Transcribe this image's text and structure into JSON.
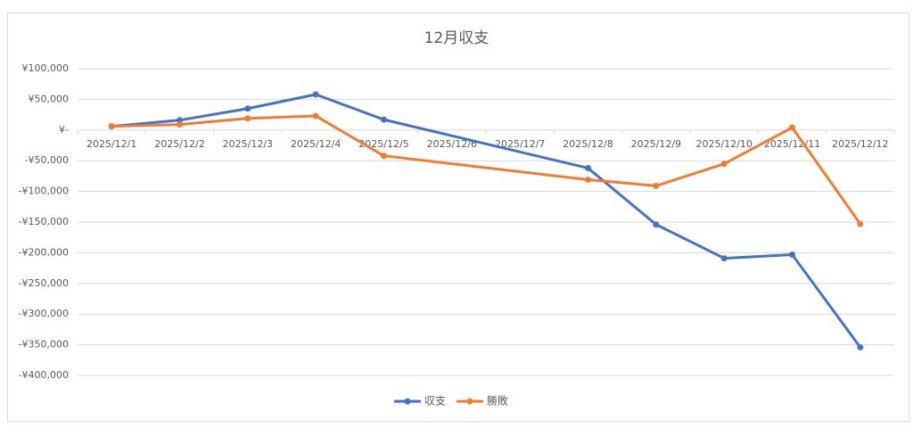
{
  "chart_data": {
    "type": "line",
    "title": "12月収支",
    "categories": [
      "2025/12/1",
      "2025/12/2",
      "2025/12/3",
      "2025/12/4",
      "2025/12/5",
      "2025/12/6",
      "2025/12/7",
      "2025/12/8",
      "2025/12/9",
      "2025/12/10",
      "2025/12/11",
      "2025/12/12"
    ],
    "series": [
      {
        "name": "収支",
        "color": "#4472c4",
        "values": [
          6000,
          16000,
          35000,
          58000,
          17000,
          null,
          null,
          -62000,
          -154000,
          -209000,
          -203000,
          -354000
        ]
      },
      {
        "name": "勝敗",
        "color": "#ed7d31",
        "values": [
          6000,
          9000,
          19000,
          23000,
          -42000,
          null,
          null,
          -81000,
          -91000,
          -55000,
          4000,
          -153000
        ]
      }
    ],
    "ylim": [
      -400000,
      100000
    ],
    "yticks": [
      {
        "value": 100000,
        "label": "¥100,000"
      },
      {
        "value": 50000,
        "label": "¥50,000"
      },
      {
        "value": 0,
        "label": "¥-"
      },
      {
        "value": -50000,
        "label": "-¥50,000"
      },
      {
        "value": -100000,
        "label": "-¥100,000"
      },
      {
        "value": -150000,
        "label": "-¥150,000"
      },
      {
        "value": -200000,
        "label": "-¥200,000"
      },
      {
        "value": -250000,
        "label": "-¥250,000"
      },
      {
        "value": -300000,
        "label": "-¥300,000"
      },
      {
        "value": -350000,
        "label": "-¥350,000"
      },
      {
        "value": -400000,
        "label": "-¥400,000"
      }
    ],
    "grid": true,
    "connect_gaps": true,
    "legend": "bottom"
  }
}
